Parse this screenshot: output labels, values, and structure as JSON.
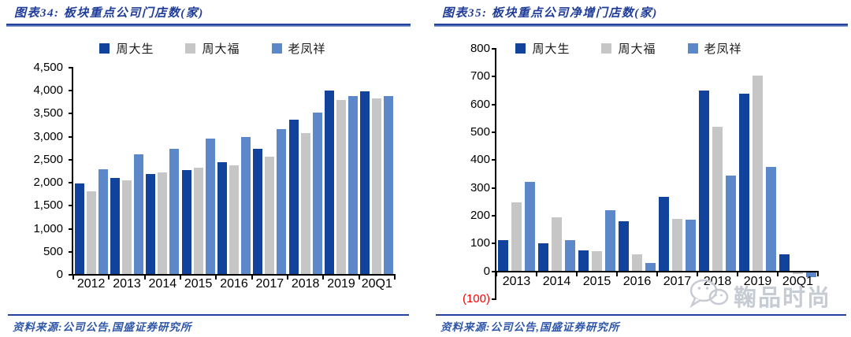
{
  "source_note": "资料来源:公司公告,国盛证券研究所",
  "watermark": {
    "text": "鞠品时尚",
    "icon": "wechat-logo"
  },
  "colors": {
    "title_blue": "#1F3C99",
    "rule_blue": "#24449C",
    "source_blue": "#2F57A8",
    "axis_black": "#000000",
    "negative_red": "#FF0000",
    "watermark_gray": "#C7CBD3",
    "series_zhoudasheng": "#12439C",
    "series_zhoudafu": "#C6C6C6",
    "series_laofengxiang": "#5C88C9"
  },
  "chart_data": [
    {
      "id": "store-count",
      "type": "bar",
      "title": "图表34: 板块重点公司门店数(家)",
      "xlabel": "",
      "ylabel": "",
      "grid": false,
      "legend_position": "top",
      "ylim": [
        0,
        4500
      ],
      "categories": [
        "2012",
        "2013",
        "2014",
        "2015",
        "2016",
        "2017",
        "2018",
        "2019",
        "20Q1"
      ],
      "series": [
        {
          "name": "周大生",
          "color": "#12439C",
          "values": [
            1980,
            2100,
            2190,
            2270,
            2450,
            2730,
            3370,
            4010,
            3990
          ]
        },
        {
          "name": "周大福",
          "color": "#C6C6C6",
          "values": [
            1810,
            2050,
            2230,
            2320,
            2380,
            2560,
            3080,
            3790,
            3830
          ]
        },
        {
          "name": "老凤祥",
          "color": "#5C88C9",
          "values": [
            2300,
            2620,
            2730,
            2960,
            3000,
            3170,
            3520,
            3880,
            3880
          ]
        }
      ],
      "yticks": [
        {
          "label": "4,500",
          "value": 4500
        },
        {
          "label": "4,000",
          "value": 4000
        },
        {
          "label": "3,500",
          "value": 3500
        },
        {
          "label": "3,000",
          "value": 3000
        },
        {
          "label": "2,500",
          "value": 2500
        },
        {
          "label": "2,000",
          "value": 2000
        },
        {
          "label": "1,500",
          "value": 1500
        },
        {
          "label": "1,000",
          "value": 1000
        },
        {
          "label": "500",
          "value": 500
        },
        {
          "label": "0",
          "value": 0
        }
      ]
    },
    {
      "id": "net-new-stores",
      "type": "bar",
      "title": "图表35: 板块重点公司净增门店数(家)",
      "xlabel": "",
      "ylabel": "",
      "grid": false,
      "legend_position": "top",
      "ylim": [
        -100,
        800
      ],
      "categories": [
        "2013",
        "2014",
        "2015",
        "2016",
        "2017",
        "2018",
        "2019",
        "20Q1"
      ],
      "series": [
        {
          "name": "周大生",
          "color": "#12439C",
          "values": [
            112,
            100,
            76,
            180,
            267,
            650,
            640,
            62
          ]
        },
        {
          "name": "周大福",
          "color": "#C6C6C6",
          "values": [
            248,
            195,
            74,
            60,
            188,
            520,
            705,
            -8
          ]
        },
        {
          "name": "老凤祥",
          "color": "#5C88C9",
          "values": [
            322,
            112,
            220,
            30,
            185,
            345,
            375,
            -18
          ]
        }
      ],
      "yticks": [
        {
          "label": "800",
          "value": 800
        },
        {
          "label": "700",
          "value": 700
        },
        {
          "label": "600",
          "value": 600
        },
        {
          "label": "500",
          "value": 500
        },
        {
          "label": "400",
          "value": 400
        },
        {
          "label": "300",
          "value": 300
        },
        {
          "label": "200",
          "value": 200
        },
        {
          "label": "100",
          "value": 100
        },
        {
          "label": "0",
          "value": 0
        },
        {
          "label": "(100)",
          "value": -100,
          "color": "#FF0000"
        }
      ]
    }
  ]
}
